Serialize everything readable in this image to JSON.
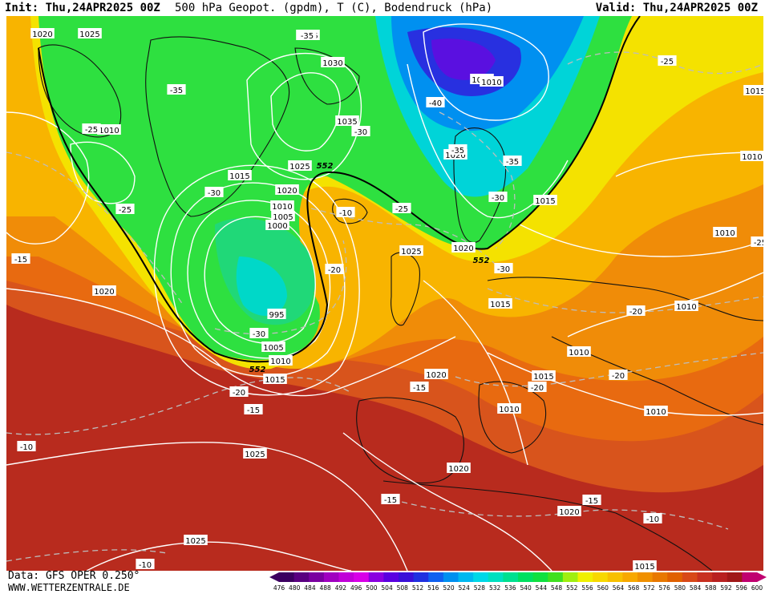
{
  "header": {
    "init": "Init: Thu,24APR2025 00Z",
    "title": "500 hPa Geopot. (gpdm), T (C), Bodendruck (hPa)",
    "valid": "Valid: Thu,24APR2025 00Z"
  },
  "footer": {
    "source": "Data: GFS OPER 0.250°",
    "website": "WWW.WETTERZENTRALE.DE"
  },
  "colorbar": {
    "levels": [
      476,
      480,
      484,
      488,
      492,
      496,
      500,
      504,
      508,
      512,
      516,
      520,
      524,
      528,
      532,
      536,
      540,
      544,
      548,
      552,
      556,
      560,
      564,
      568,
      572,
      576,
      580,
      584,
      588,
      592,
      596,
      600
    ],
    "colors": [
      "#3c0060",
      "#5a0080",
      "#7a00a0",
      "#a000c0",
      "#c000d8",
      "#d800e8",
      "#8a00e0",
      "#5a00e0",
      "#3a10d8",
      "#2030e0",
      "#1060f0",
      "#0090f0",
      "#00b8f0",
      "#00d8e8",
      "#00e0c0",
      "#00e090",
      "#00e060",
      "#10e040",
      "#40e020",
      "#a0ee10",
      "#f0f000",
      "#f8d800",
      "#f8c000",
      "#f8a800",
      "#f09000",
      "#e87800",
      "#e06000",
      "#d84818",
      "#c83020",
      "#b82020",
      "#a01818",
      "#c00070"
    ]
  },
  "isobar_labels": [
    "1020",
    "1025",
    "1025",
    "1030",
    "1035",
    "1025",
    "1015",
    "1020",
    "1010",
    "1005",
    "1000",
    "995",
    "1005",
    "1010",
    "1015",
    "1020",
    "1010",
    "1020",
    "1015",
    "1025",
    "1020",
    "1015",
    "1010",
    "1015",
    "1010",
    "1010",
    "1010",
    "1010",
    "1015",
    "1010",
    "1010",
    "1020",
    "1025",
    "1020",
    "1020",
    "1025",
    "1015",
    "1020"
  ],
  "isotherm_labels": [
    "-35",
    "-35",
    "-25",
    "-30",
    "-40",
    "-35",
    "-35",
    "-30",
    "-25",
    "-30",
    "-10",
    "-25",
    "-30",
    "-20",
    "-30",
    "-15",
    "-20",
    "-25",
    "-20",
    "-20",
    "-20",
    "-15",
    "-15",
    "-10",
    "-15",
    "-15",
    "-10",
    "-10",
    "-25"
  ],
  "height_labels": [
    "552",
    "552",
    "552"
  ]
}
